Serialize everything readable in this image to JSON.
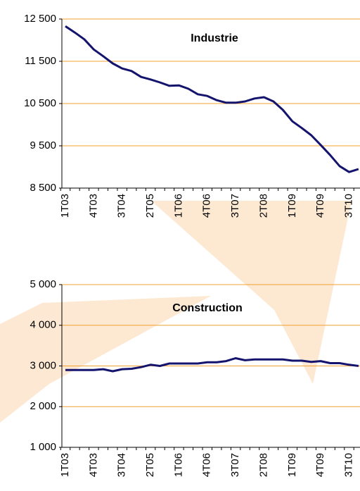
{
  "chart_data": [
    {
      "type": "line",
      "title": "Industrie",
      "categories": [
        "1T03",
        null,
        null,
        "4T03",
        null,
        null,
        "3T04",
        null,
        null,
        "2T05",
        null,
        null,
        "1T06",
        null,
        null,
        "4T06",
        null,
        null,
        "3T07",
        null,
        null,
        "2T08",
        null,
        null,
        "1T09",
        null,
        null,
        "4T09",
        null,
        null,
        "3T10",
        null
      ],
      "series": [
        {
          "name": "Industrie",
          "color": "#14146e",
          "values": [
            12330,
            12180,
            12020,
            11780,
            11620,
            11450,
            11330,
            11270,
            11130,
            11070,
            11000,
            10920,
            10930,
            10850,
            10720,
            10680,
            10580,
            10520,
            10520,
            10550,
            10620,
            10650,
            10550,
            10350,
            10080,
            9920,
            9750,
            9520,
            9280,
            9020,
            8880,
            8950
          ]
        }
      ],
      "ylim": [
        8500,
        12500
      ],
      "yticks": [
        {
          "value": 8500,
          "label": "8 500"
        },
        {
          "value": 9500,
          "label": "9 500"
        },
        {
          "value": 10500,
          "label": "10 500"
        },
        {
          "value": 11500,
          "label": "11 500"
        },
        {
          "value": 12500,
          "label": "12 500"
        }
      ],
      "grid": true,
      "grid_color": "#f0a030"
    },
    {
      "type": "line",
      "title": "Construction",
      "categories": [
        "1T03",
        null,
        null,
        "4T03",
        null,
        null,
        "3T04",
        null,
        null,
        "2T05",
        null,
        null,
        "1T06",
        null,
        null,
        "4T06",
        null,
        null,
        "3T07",
        null,
        null,
        "2T08",
        null,
        null,
        "1T09",
        null,
        null,
        "4T09",
        null,
        null,
        "3T10",
        null
      ],
      "series": [
        {
          "name": "Construction",
          "color": "#14146e",
          "values": [
            2900,
            2900,
            2900,
            2900,
            2920,
            2870,
            2920,
            2930,
            2970,
            3030,
            3000,
            3060,
            3060,
            3060,
            3060,
            3090,
            3090,
            3120,
            3190,
            3140,
            3160,
            3160,
            3160,
            3160,
            3130,
            3130,
            3100,
            3120,
            3070,
            3070,
            3030,
            3000
          ]
        }
      ],
      "ylim": [
        1000,
        5000
      ],
      "yticks": [
        {
          "value": 1000,
          "label": "1 000"
        },
        {
          "value": 2000,
          "label": "2 000"
        },
        {
          "value": 3000,
          "label": "3 000"
        },
        {
          "value": 4000,
          "label": "4 000"
        },
        {
          "value": 5000,
          "label": "5 000"
        }
      ],
      "grid": true,
      "grid_color": "#f0a030"
    }
  ]
}
